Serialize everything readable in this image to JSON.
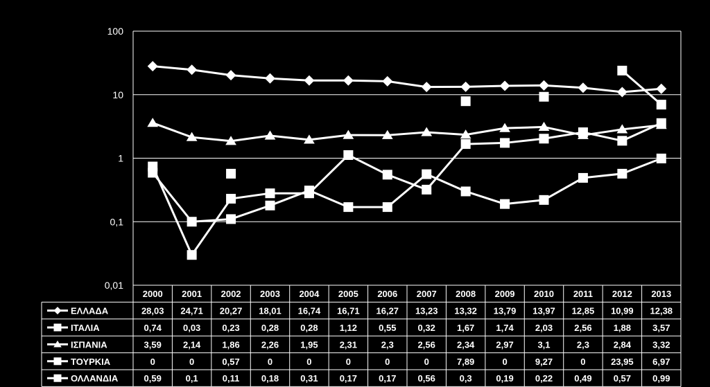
{
  "chart_data": {
    "type": "line",
    "title": "",
    "xlabel": "",
    "ylabel": "",
    "y_scale": "log",
    "ylim": [
      0.01,
      100
    ],
    "y_ticks": [
      {
        "value": 100,
        "label": "100"
      },
      {
        "value": 10,
        "label": "10"
      },
      {
        "value": 1,
        "label": "1"
      },
      {
        "value": 0.1,
        "label": "0,1"
      },
      {
        "value": 0.01,
        "label": "0,01"
      }
    ],
    "grid": true,
    "legend": "data-table-bottom",
    "categories": [
      "2000",
      "2001",
      "2002",
      "2003",
      "2004",
      "2005",
      "2006",
      "2007",
      "2008",
      "2009",
      "2010",
      "2011",
      "2012",
      "2013"
    ],
    "series": [
      {
        "name": "ΕΛΛΑΔΑ",
        "marker": "diamond",
        "values": [
          28.03,
          24.71,
          20.27,
          18.01,
          16.74,
          16.71,
          16.27,
          13.23,
          13.32,
          13.79,
          13.97,
          12.85,
          10.99,
          12.38
        ],
        "labels": [
          "28,03",
          "24,71",
          "20,27",
          "18,01",
          "16,74",
          "16,71",
          "16,27",
          "13,23",
          "13,32",
          "13,79",
          "13,97",
          "12,85",
          "10,99",
          "12,38"
        ]
      },
      {
        "name": "ΙΤΑΛΙΑ",
        "marker": "square",
        "values": [
          0.74,
          0.03,
          0.23,
          0.28,
          0.28,
          1.12,
          0.55,
          0.32,
          1.67,
          1.74,
          2.03,
          2.56,
          1.88,
          3.57
        ],
        "labels": [
          "0,74",
          "0,03",
          "0,23",
          "0,28",
          "0,28",
          "1,12",
          "0,55",
          "0,32",
          "1,67",
          "1,74",
          "2,03",
          "2,56",
          "1,88",
          "3,57"
        ]
      },
      {
        "name": "ΙΣΠΑΝΙΑ",
        "marker": "triangle",
        "values": [
          3.59,
          2.14,
          1.86,
          2.26,
          1.95,
          2.31,
          2.3,
          2.56,
          2.34,
          2.97,
          3.1,
          2.3,
          2.84,
          3.32
        ],
        "labels": [
          "3,59",
          "2,14",
          "1,86",
          "2,26",
          "1,95",
          "2,31",
          "2,3",
          "2,56",
          "2,34",
          "2,97",
          "3,1",
          "2,3",
          "2,84",
          "3,32"
        ]
      },
      {
        "name": "ΤΟΥΡΚΙΑ",
        "marker": "square",
        "values": [
          0,
          0,
          0.57,
          0,
          0,
          0,
          0,
          0,
          7.89,
          0,
          9.27,
          0,
          23.95,
          6.97
        ],
        "labels": [
          "0",
          "0",
          "0,57",
          "0",
          "0",
          "0",
          "0",
          "0",
          "7,89",
          "0",
          "9,27",
          "0",
          "23,95",
          "6,97"
        ]
      },
      {
        "name": "ΟΛΛΑΝΔΙΑ",
        "marker": "square",
        "values": [
          0.59,
          0.1,
          0.11,
          0.18,
          0.31,
          0.17,
          0.17,
          0.56,
          0.3,
          0.19,
          0.22,
          0.49,
          0.57,
          0.99
        ],
        "labels": [
          "0,59",
          "0,1",
          "0,11",
          "0,18",
          "0,31",
          "0,17",
          "0,17",
          "0,56",
          "0,3",
          "0,19",
          "0,22",
          "0,49",
          "0,57",
          "0,99"
        ]
      }
    ],
    "colors": {
      "background": "#000000",
      "line": "#ffffff",
      "grid": "#ffffff"
    }
  }
}
